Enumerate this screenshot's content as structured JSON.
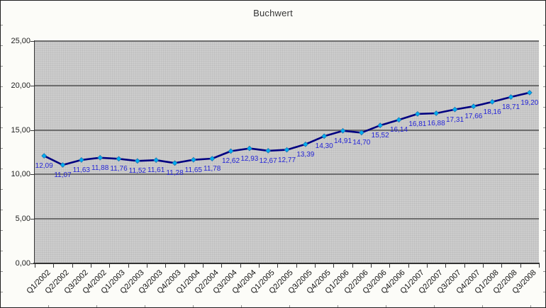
{
  "chart_data": {
    "type": "line",
    "title": "Buchwert",
    "categories": [
      "Q1/2002",
      "Q2/2002",
      "Q3/2002",
      "Q4/2002",
      "Q1/2003",
      "Q2/2003",
      "Q3/2003",
      "Q4/2003",
      "Q1/2004",
      "Q2/2004",
      "Q3/2004",
      "Q4/2004",
      "Q1/2005",
      "Q2/2005",
      "Q3/2005",
      "Q4/2005",
      "Q1/2006",
      "Q2/2006",
      "Q3/2006",
      "Q4/2006",
      "Q1/2007",
      "Q2/2007",
      "Q3/2007",
      "Q4/2007",
      "Q1/2008",
      "Q2/2008",
      "Q3/2008"
    ],
    "values": [
      12.09,
      11.07,
      11.63,
      11.88,
      11.76,
      11.52,
      11.61,
      11.28,
      11.65,
      11.78,
      12.62,
      12.93,
      12.67,
      12.77,
      13.39,
      14.3,
      14.91,
      14.7,
      15.52,
      16.14,
      16.81,
      16.88,
      17.31,
      17.66,
      18.16,
      18.71,
      19.2
    ],
    "data_labels": [
      "12,09",
      "11,07",
      "11,63",
      "11,88",
      "11,76",
      "11,52",
      "11,61",
      "11,28",
      "11,65",
      "11,78",
      "12,62",
      "12,93",
      "12,67",
      "12,77",
      "13,39",
      "14,30",
      "14,91",
      "14,70",
      "15,52",
      "16,14",
      "16,81",
      "16,88",
      "17,31",
      "17,66",
      "18,16",
      "18,71",
      "19,20"
    ],
    "ylim": [
      0,
      25
    ],
    "yticks": [
      0,
      5,
      10,
      15,
      20,
      25
    ],
    "ytick_labels": [
      "0,00",
      "5,00",
      "10,00",
      "15,00",
      "20,00",
      "25,00"
    ],
    "grid": true,
    "legend": "none",
    "xlabel": "",
    "ylabel": "",
    "colors": {
      "line": "#000080",
      "marker_fill": "#00AEEF",
      "marker_stroke": "#1b6fae",
      "data_label": "#2424D6",
      "plot_background": "#CDCDCD",
      "gridline": "#6E6E6E",
      "axis": "#333333",
      "title_text": "#353535",
      "chart_background": "#FCFCF8"
    }
  }
}
